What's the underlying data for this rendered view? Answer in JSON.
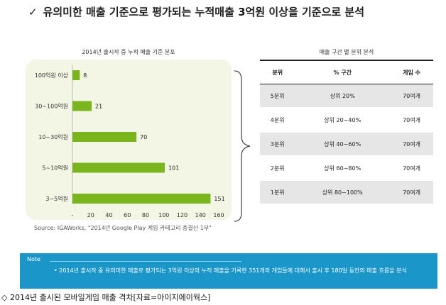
{
  "headline": {
    "check": "✓",
    "text": "유의미한 매출 기준으로 평가되는 누적매출 3억원 이상을 기준으로 분석"
  },
  "chart_data": {
    "type": "bar",
    "orientation": "horizontal",
    "title": "2014년 출시작 중 누적 매출 기준 분포",
    "categories": [
      "100억원 이상",
      "30~100억원",
      "10~30억원",
      "5~10억원",
      "3~5억원"
    ],
    "values": [
      8,
      21,
      70,
      101,
      151
    ],
    "xlim": [
      0,
      160
    ],
    "xticks": [
      "-",
      "20",
      "40",
      "60",
      "80",
      "100",
      "120",
      "140",
      "160"
    ],
    "bar_color": "#7ab51d",
    "grid": false,
    "legend": "none"
  },
  "source": "Source: IGAWorks, \"2014년 Google Play 게임 카테고리 총결산 1부\"",
  "table": {
    "title": "매출 구간 별 분위 분석",
    "headers": [
      "분위",
      "% 구간",
      "게임 수"
    ],
    "rows": [
      [
        "5분위",
        "상위 20%",
        "70여개"
      ],
      [
        "4분위",
        "상위 20~40%",
        "70여개"
      ],
      [
        "3분위",
        "상위 40~60%",
        "70여개"
      ],
      [
        "2분위",
        "상위 60~80%",
        "70여개"
      ],
      [
        "1분위",
        "상위 80~100%",
        "70여개"
      ]
    ]
  },
  "note": {
    "label": "Note",
    "text": "•  2014년 출시작 중 유의미한 매출로 평가되는 3억원 이상의 누적 매출을 기록한 351개의 게임들에 대해서 출시 후 180일 동안의 매출 흐름을 분석",
    "color": "#1a96c8"
  },
  "caption": "◇ 2014년 출시된 모바일게임 매출 격차[자료=아이지에이웍스]"
}
